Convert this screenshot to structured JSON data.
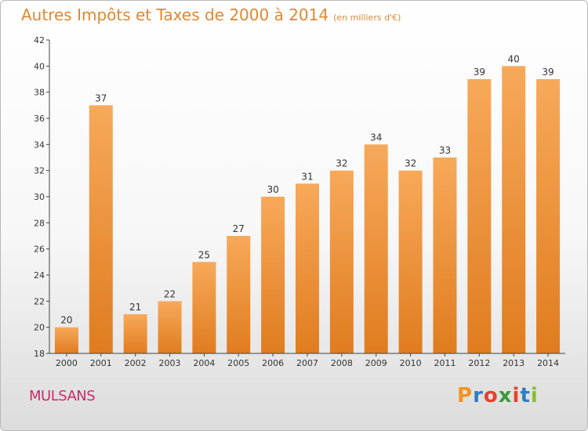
{
  "header": {
    "title": "Autres Impôts et Taxes de 2000 à 2014",
    "unit": "(en milliers d'€)"
  },
  "footer": {
    "commune": "MULSANS",
    "logo": "Proxiti"
  },
  "colors": {
    "bar_light": "#f7a95a",
    "bar_dark": "#e07c1f",
    "title": "#e0872f",
    "commune": "#cc2a6a",
    "logo_letters": [
      "#f2931f",
      "#2f7fc1",
      "#e8412c",
      "#3a9b3a",
      "#e8412c",
      "#2f7fc1",
      "#8bbd2a"
    ]
  },
  "chart_data": {
    "type": "bar",
    "title": "Autres Impôts et Taxes de 2000 à 2014",
    "subtitle": "(en milliers d'€)",
    "xlabel": "",
    "ylabel": "",
    "categories": [
      "2000",
      "2001",
      "2002",
      "2003",
      "2004",
      "2005",
      "2006",
      "2007",
      "2008",
      "2009",
      "2010",
      "2011",
      "2012",
      "2013",
      "2014"
    ],
    "values": [
      20,
      37,
      21,
      22,
      25,
      27,
      30,
      31,
      32,
      34,
      32,
      33,
      39,
      40,
      39
    ],
    "ylim": [
      18,
      42
    ],
    "yticks": [
      18,
      20,
      22,
      24,
      26,
      28,
      30,
      32,
      34,
      36,
      38,
      40,
      42
    ],
    "grid": false,
    "legend": "none"
  }
}
